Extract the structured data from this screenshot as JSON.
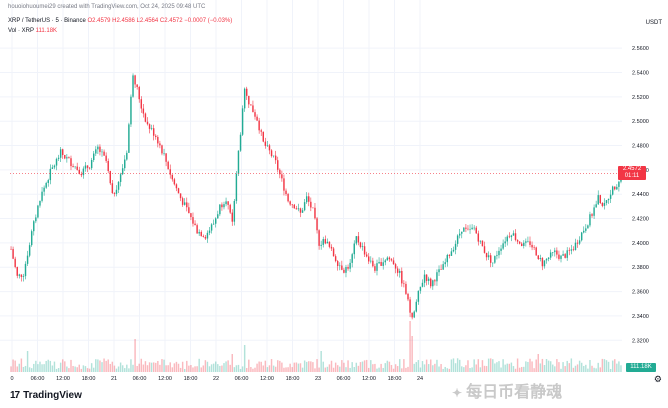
{
  "header": {
    "text": "houoiohuoumei29 created with TradingView.com, Oct 24, 2025 09:48 UTC"
  },
  "symbol": {
    "name": "XRP / TetherUS · 5 · Binance",
    "ohlc": "O2.4579 H2.4586 L2.4564 C2.4572 −0.0007 (−0.03%)"
  },
  "volume": {
    "label": "Vol · XRP",
    "value": "111.18K"
  },
  "currency": "USDT",
  "last_price_badge": {
    "price": "2.4572",
    "countdown": "01:11"
  },
  "volume_badge": "111.18K",
  "footer": {
    "logo_text": "TradingView",
    "logo_mark": "17"
  },
  "watermark": {
    "text": "每日币看静魂",
    "icon": "wechat-icon"
  },
  "colors": {
    "up": "#22ab94",
    "down": "#f23645",
    "grid": "#f0f3fa"
  },
  "chart_data": {
    "type": "candlestick",
    "y_tick_labels": [
      "2.5600",
      "2.5400",
      "2.5200",
      "2.5000",
      "2.4800",
      "2.4600",
      "2.4400",
      "2.4200",
      "2.4000",
      "2.3800",
      "2.3600",
      "2.3400",
      "2.3200"
    ],
    "ylim": [
      2.312,
      2.57
    ],
    "x_tick_labels": [
      "0",
      "06:00",
      "12:00",
      "18:00",
      "21",
      "06:00",
      "12:00",
      "18:00",
      "22",
      "06:00",
      "12:00",
      "18:00",
      "23",
      "06:00",
      "12:00",
      "18:00",
      "24"
    ],
    "price_path": [
      [
        0,
        2.395
      ],
      [
        3,
        2.372
      ],
      [
        6,
        2.375
      ],
      [
        10,
        2.408
      ],
      [
        14,
        2.437
      ],
      [
        19,
        2.458
      ],
      [
        24,
        2.474
      ],
      [
        29,
        2.466
      ],
      [
        34,
        2.458
      ],
      [
        38,
        2.464
      ],
      [
        42,
        2.478
      ],
      [
        46,
        2.467
      ],
      [
        49,
        2.438
      ],
      [
        53,
        2.455
      ],
      [
        56,
        2.476
      ],
      [
        59,
        2.54
      ],
      [
        63,
        2.512
      ],
      [
        66,
        2.497
      ],
      [
        70,
        2.488
      ],
      [
        74,
        2.472
      ],
      [
        78,
        2.452
      ],
      [
        82,
        2.437
      ],
      [
        86,
        2.424
      ],
      [
        90,
        2.41
      ],
      [
        94,
        2.406
      ],
      [
        98,
        2.416
      ],
      [
        101,
        2.43
      ],
      [
        104,
        2.437
      ],
      [
        107,
        2.415
      ],
      [
        110,
        2.475
      ],
      [
        113,
        2.524
      ],
      [
        116,
        2.512
      ],
      [
        119,
        2.502
      ],
      [
        122,
        2.482
      ],
      [
        125,
        2.475
      ],
      [
        128,
        2.466
      ],
      [
        131,
        2.451
      ],
      [
        134,
        2.435
      ],
      [
        137,
        2.431
      ],
      [
        140,
        2.424
      ],
      [
        143,
        2.437
      ],
      [
        146,
        2.426
      ],
      [
        149,
        2.4
      ],
      [
        152,
        2.402
      ],
      [
        155,
        2.393
      ],
      [
        158,
        2.384
      ],
      [
        161,
        2.378
      ],
      [
        164,
        2.382
      ],
      [
        167,
        2.404
      ],
      [
        170,
        2.396
      ],
      [
        173,
        2.386
      ],
      [
        176,
        2.379
      ],
      [
        179,
        2.384
      ],
      [
        182,
        2.388
      ],
      [
        185,
        2.384
      ],
      [
        188,
        2.374
      ],
      [
        191,
        2.359
      ],
      [
        194,
        2.336
      ],
      [
        197,
        2.358
      ],
      [
        200,
        2.374
      ],
      [
        203,
        2.366
      ],
      [
        206,
        2.374
      ],
      [
        209,
        2.38
      ],
      [
        212,
        2.391
      ],
      [
        215,
        2.4
      ],
      [
        218,
        2.412
      ],
      [
        221,
        2.409
      ],
      [
        224,
        2.412
      ],
      [
        227,
        2.4
      ],
      [
        230,
        2.39
      ],
      [
        233,
        2.384
      ],
      [
        236,
        2.395
      ],
      [
        239,
        2.403
      ],
      [
        242,
        2.409
      ],
      [
        245,
        2.402
      ],
      [
        248,
        2.398
      ],
      [
        251,
        2.4
      ],
      [
        254,
        2.392
      ],
      [
        257,
        2.383
      ],
      [
        260,
        2.388
      ],
      [
        263,
        2.392
      ],
      [
        266,
        2.388
      ],
      [
        269,
        2.391
      ],
      [
        272,
        2.396
      ],
      [
        275,
        2.405
      ],
      [
        278,
        2.414
      ],
      [
        281,
        2.424
      ],
      [
        284,
        2.437
      ],
      [
        287,
        2.43
      ],
      [
        290,
        2.442
      ],
      [
        293,
        2.449
      ],
      [
        296,
        2.457
      ]
    ],
    "n_candles": 296,
    "volume_spikes": [
      [
        8,
        0.35
      ],
      [
        60,
        0.55
      ],
      [
        107,
        0.3
      ],
      [
        113,
        0.45
      ],
      [
        150,
        0.35
      ],
      [
        193,
        0.85
      ],
      [
        194,
        0.6
      ],
      [
        255,
        0.3
      ],
      [
        280,
        0.2
      ]
    ]
  }
}
